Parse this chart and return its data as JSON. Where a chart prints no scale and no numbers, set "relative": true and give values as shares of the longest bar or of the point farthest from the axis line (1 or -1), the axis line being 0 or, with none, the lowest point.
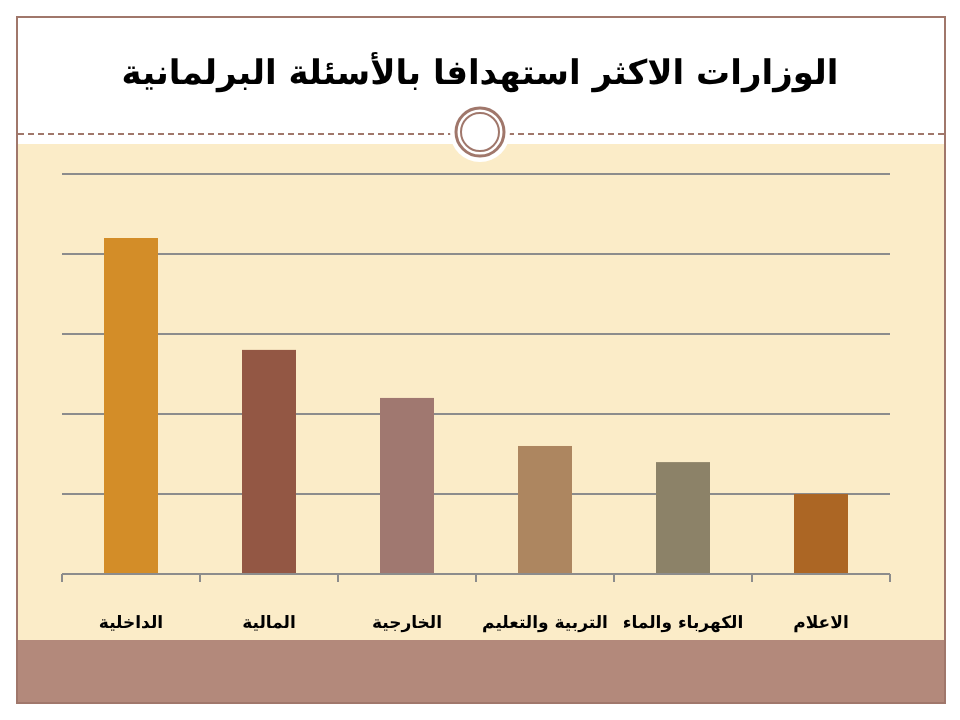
{
  "chart_data": {
    "type": "bar",
    "title": "الوزارات الاكثر استهدافا بالأسئلة البرلمانية",
    "categories": [
      "الداخلية",
      "المالية",
      "الخارجية",
      "التربية والتعليم",
      "الكهرباء والماء",
      "الاعلام"
    ],
    "values": [
      1,
      0.667,
      0.524,
      0.381,
      0.333,
      0.238
    ],
    "colors": [
      "#d38d28",
      "#935744",
      "#a07870",
      "#ad8660",
      "#8c8268",
      "#ac6624"
    ],
    "relative": true,
    "grid": "y"
  }
}
